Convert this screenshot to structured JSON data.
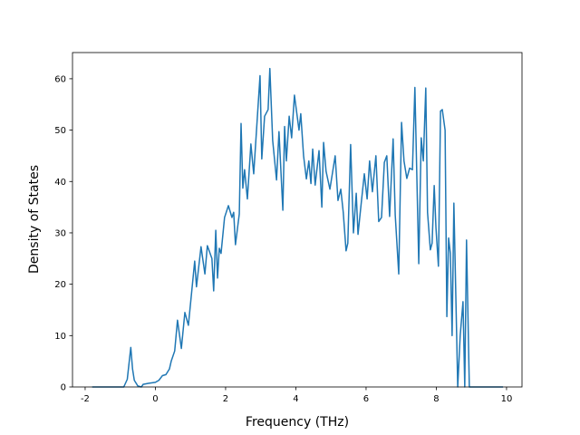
{
  "chart_data": {
    "type": "line",
    "xlabel": "Frequency (THz)",
    "ylabel": "Density of States",
    "color": "#1f77b4",
    "xlim": [
      -2.36,
      10.44
    ],
    "ylim": [
      0,
      65.1
    ],
    "xticks": [
      -2,
      0,
      2,
      4,
      6,
      8,
      10
    ],
    "yticks": [
      0,
      10,
      20,
      30,
      40,
      50,
      60
    ],
    "x": [
      -1.8,
      -0.9,
      -0.8,
      -0.7,
      -0.65,
      -0.6,
      -0.5,
      -0.4,
      -0.35,
      -0.2,
      0,
      0.1,
      0.2,
      0.3,
      0.4,
      0.45,
      0.55,
      0.63,
      0.74,
      0.84,
      0.94,
      1.12,
      1.17,
      1.3,
      1.41,
      1.48,
      1.61,
      1.66,
      1.72,
      1.77,
      1.82,
      1.87,
      1.97,
      2.08,
      2.18,
      2.23,
      2.28,
      2.39,
      2.44,
      2.49,
      2.54,
      2.62,
      2.72,
      2.8,
      2.98,
      3.03,
      3.11,
      3.21,
      3.26,
      3.34,
      3.45,
      3.52,
      3.63,
      3.68,
      3.73,
      3.81,
      3.88,
      3.96,
      4.09,
      4.14,
      4.22,
      4.3,
      4.37,
      4.43,
      4.48,
      4.55,
      4.66,
      4.74,
      4.79,
      4.86,
      4.97,
      5.12,
      5.2,
      5.28,
      5.35,
      5.43,
      5.48,
      5.56,
      5.64,
      5.72,
      5.77,
      5.85,
      5.95,
      6.03,
      6.1,
      6.18,
      6.28,
      6.36,
      6.44,
      6.52,
      6.59,
      6.67,
      6.77,
      6.83,
      6.93,
      7.01,
      7.08,
      7.16,
      7.24,
      7.32,
      7.39,
      7.5,
      7.57,
      7.63,
      7.7,
      7.75,
      7.83,
      7.88,
      7.94,
      7.99,
      8.06,
      8.12,
      8.17,
      8.25,
      8.3,
      8.35,
      8.4,
      8.45,
      8.5,
      8.61,
      8.68,
      8.76,
      8.81,
      8.86,
      8.94,
      9.9
    ],
    "values": [
      0,
      0,
      1.5,
      7.7,
      3.5,
      1.3,
      0.2,
      0,
      0.5,
      0.7,
      0.9,
      1.3,
      2.2,
      2.4,
      3.5,
      5,
      7,
      13,
      7.5,
      14.5,
      12,
      24.5,
      19.5,
      27.3,
      22,
      27.5,
      25,
      18.7,
      30.5,
      21.2,
      27,
      26,
      33,
      35.3,
      33,
      34,
      27.7,
      33.7,
      51.3,
      38.7,
      42.3,
      36.6,
      47.3,
      41.5,
      60.6,
      44.4,
      52.7,
      54,
      62,
      48,
      40.3,
      49.7,
      34.4,
      50.7,
      44,
      52.7,
      48.5,
      56.8,
      50,
      53.2,
      45,
      40.5,
      44,
      39.6,
      46.3,
      39.3,
      46,
      35,
      47.6,
      42,
      38.5,
      45,
      36.3,
      38.5,
      34,
      26.5,
      28,
      47.2,
      30,
      37.7,
      29.7,
      35,
      41.5,
      36.6,
      44,
      38,
      45,
      32.2,
      33,
      43.7,
      45,
      33.2,
      48.3,
      33.5,
      22,
      51.5,
      44,
      40.6,
      42.6,
      42.3,
      58.3,
      24,
      48.5,
      44,
      58.2,
      34,
      26.7,
      28,
      39.2,
      31,
      23.5,
      53.7,
      54,
      50,
      13.7,
      29,
      26,
      10,
      35.8,
      0,
      10,
      16.6,
      0,
      28.6,
      0,
      0
    ]
  }
}
